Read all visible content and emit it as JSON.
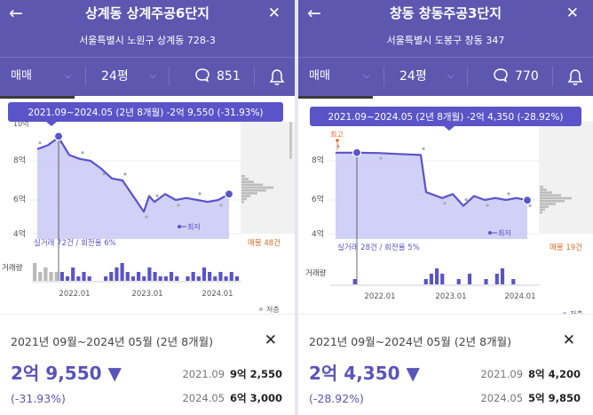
{
  "panels": [
    {
      "header": {
        "title": "상계동 상계주공6단지",
        "address": "서울특별시 노원구 상계동 728-3"
      },
      "toolbar": {
        "trade_type": "매매",
        "size": "24평",
        "comment_count": "851"
      },
      "chart": {
        "tooltip": "2021.09~2024.05 (2년 8개월)  -2억 9,550 (-31.93%)",
        "y_ticks": [
          "8억",
          "6억",
          "4억"
        ],
        "y_top_cut": "10억",
        "high_label": "",
        "low_label": "최저",
        "stats_left": "실거래 72건 / 회전율 6%",
        "stats_right": "매물 48건",
        "volume_label": "거래량",
        "x_ticks": [
          "2022.01",
          "2023.01",
          "2024.01"
        ],
        "legend_low": "저층"
      },
      "chart_data": {
        "type": "line",
        "x_label": "",
        "y_unit": "억",
        "ylim": [
          3.9,
          10
        ],
        "x_range": [
          "2021.04",
          "2024.07"
        ],
        "line": [
          {
            "x": "2021.05",
            "y": 8.6
          },
          {
            "x": "2021.07",
            "y": 8.8
          },
          {
            "x": "2021.09",
            "y": 9.2
          },
          {
            "x": "2021.11",
            "y": 8.3
          },
          {
            "x": "2022.01",
            "y": 8.1
          },
          {
            "x": "2022.03",
            "y": 8.0
          },
          {
            "x": "2022.05",
            "y": 7.6
          },
          {
            "x": "2022.07",
            "y": 7.1
          },
          {
            "x": "2022.09",
            "y": 7.0
          },
          {
            "x": "2022.11",
            "y": 6.2
          },
          {
            "x": "2023.01",
            "y": 5.4
          },
          {
            "x": "2023.02",
            "y": 6.2
          },
          {
            "x": "2023.03",
            "y": 5.9
          },
          {
            "x": "2023.05",
            "y": 6.3
          },
          {
            "x": "2023.07",
            "y": 6.0
          },
          {
            "x": "2023.09",
            "y": 6.1
          },
          {
            "x": "2023.11",
            "y": 6.0
          },
          {
            "x": "2024.01",
            "y": 5.9
          },
          {
            "x": "2024.03",
            "y": 6.0
          },
          {
            "x": "2024.05",
            "y": 6.3
          }
        ],
        "start": {
          "x": "2021.09",
          "y": 9.255
        },
        "end": {
          "x": "2024.05",
          "y": 6.3
        },
        "volume_gray": [
          4,
          2,
          3,
          2,
          2,
          0,
          0,
          0,
          0,
          0,
          0,
          0,
          0,
          0,
          0,
          0,
          0,
          0,
          0,
          0,
          0,
          0,
          0,
          0,
          0,
          0,
          0,
          0,
          0,
          0,
          0,
          0,
          0,
          0,
          0,
          0,
          0,
          0
        ],
        "volume_purple": [
          0,
          0,
          0,
          0,
          0,
          2,
          1,
          3,
          1,
          2,
          1,
          0,
          0,
          1,
          2,
          3,
          4,
          2,
          1,
          2,
          1,
          3,
          2,
          1,
          1,
          2,
          1,
          0,
          1,
          2,
          1,
          3,
          2,
          1,
          2,
          1,
          2,
          1
        ]
      },
      "detail": {
        "period": "2021년 09월~2024년 05월 (2년 8개월)",
        "change": "2억 9,550 ▼",
        "rate": "(-31.93%)",
        "rows": [
          {
            "date": "2021.09",
            "price": "9억 2,550"
          },
          {
            "date": "2024.05",
            "price": "6억 3,000"
          }
        ]
      }
    },
    {
      "header": {
        "title": "창동 창동주공3단지",
        "address": "서울특별시 도봉구 창동 347"
      },
      "toolbar": {
        "trade_type": "매매",
        "size": "24평",
        "comment_count": "770"
      },
      "chart": {
        "tooltip": "2021.09~2024.05 (2년 8개월)  -2억 4,350 (-28.92%)",
        "y_ticks": [
          "8억",
          "6억",
          "4억"
        ],
        "y_top_cut": "",
        "high_label": "최고",
        "low_label": "최저",
        "stats_left": "실거래 28건 / 회전율 5%",
        "stats_right": "매물 19건",
        "volume_label": "거래량",
        "x_ticks": [
          "2022.01",
          "2023.01",
          "2024.01"
        ],
        "legend_low": "저층"
      },
      "chart_data": {
        "type": "line",
        "x_label": "",
        "y_unit": "억",
        "ylim": [
          3.9,
          10
        ],
        "x_range": [
          "2021.04",
          "2024.07"
        ],
        "line": [
          {
            "x": "2021.05",
            "y": 8.42
          },
          {
            "x": "2021.09",
            "y": 8.42
          },
          {
            "x": "2022.01",
            "y": 8.4
          },
          {
            "x": "2022.05",
            "y": 8.35
          },
          {
            "x": "2022.09",
            "y": 8.3
          },
          {
            "x": "2022.10",
            "y": 6.4
          },
          {
            "x": "2023.01",
            "y": 6.1
          },
          {
            "x": "2023.03",
            "y": 6.3
          },
          {
            "x": "2023.05",
            "y": 5.7
          },
          {
            "x": "2023.07",
            "y": 6.2
          },
          {
            "x": "2023.09",
            "y": 6.0
          },
          {
            "x": "2023.11",
            "y": 6.1
          },
          {
            "x": "2024.01",
            "y": 6.0
          },
          {
            "x": "2024.03",
            "y": 6.1
          },
          {
            "x": "2024.05",
            "y": 5.985
          }
        ],
        "start": {
          "x": "2021.09",
          "y": 8.42
        },
        "end": {
          "x": "2024.05",
          "y": 5.985
        },
        "volume_gray": [],
        "volume_purple": [
          0,
          0,
          0,
          0,
          1,
          0,
          0,
          0,
          0,
          0,
          0,
          0,
          0,
          0,
          0,
          0,
          0,
          1,
          2,
          3,
          2,
          0,
          0,
          1,
          0,
          2,
          0,
          0,
          1,
          0,
          2,
          3,
          0,
          1,
          0,
          0,
          0,
          0
        ]
      },
      "detail": {
        "period": "2021년 09월~2024년 05월 (2년 8개월)",
        "change": "2억 4,350 ▼",
        "rate": "(-28.92%)",
        "rows": [
          {
            "date": "2021.09",
            "price": "8억 4,200"
          },
          {
            "date": "2024.05",
            "price": "5억 9,850"
          }
        ]
      }
    }
  ],
  "icons": {
    "back": "arrow-left-icon",
    "close": "close-icon",
    "chevron": "chevron-down-icon",
    "chat": "chat-bubble-icon",
    "bell": "bell-icon"
  },
  "colors": {
    "brand": "#5d57b0",
    "line": "#5a54c8",
    "area": "#c9c8f4",
    "volume_gray": "#b9b9b9",
    "sale_orange": "#d9702c"
  }
}
